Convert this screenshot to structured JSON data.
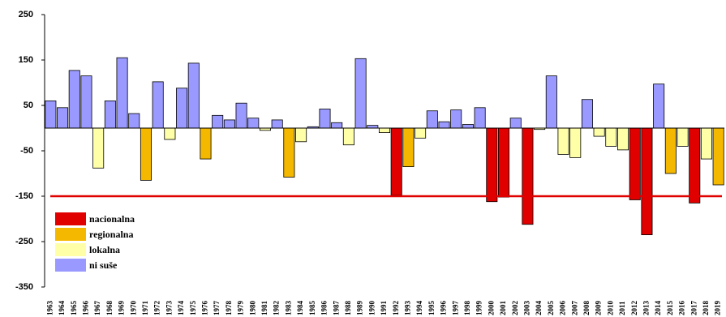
{
  "chart_data": {
    "type": "bar",
    "categories": [
      "1963",
      "1964",
      "1965",
      "1966",
      "1967",
      "1968",
      "1969",
      "1970",
      "1971",
      "1972",
      "1973",
      "1974",
      "1975",
      "1976",
      "1977",
      "1978",
      "1979",
      "1980",
      "1981",
      "1982",
      "1983",
      "1984",
      "1985",
      "1986",
      "1987",
      "1988",
      "1989",
      "1990",
      "1991",
      "1992",
      "1993",
      "1994",
      "1995",
      "1996",
      "1997",
      "1998",
      "1999",
      "2000",
      "2001",
      "2002",
      "2003",
      "2004",
      "2005",
      "2006",
      "2007",
      "2008",
      "2009",
      "2010",
      "2011",
      "2012",
      "2013",
      "2014",
      "2015",
      "2016",
      "2017",
      "2018",
      "2019"
    ],
    "values": [
      60,
      45,
      127,
      115,
      -88,
      60,
      155,
      32,
      -115,
      102,
      -25,
      88,
      143,
      -68,
      28,
      18,
      55,
      22,
      -5,
      18,
      -108,
      -30,
      3,
      42,
      12,
      -37,
      153,
      6,
      -10,
      -148,
      -85,
      -22,
      38,
      14,
      40,
      8,
      45,
      -162,
      -152,
      22,
      -212,
      -3,
      115,
      -58,
      -65,
      63,
      -18,
      -40,
      -48,
      -158,
      -235,
      97,
      -100,
      -40,
      -165,
      -68,
      -125
    ],
    "colors": [
      "#9999ff",
      "#9999ff",
      "#9999ff",
      "#9999ff",
      "#ffffa8",
      "#9999ff",
      "#9999ff",
      "#9999ff",
      "#f5b800",
      "#9999ff",
      "#ffffa8",
      "#9999ff",
      "#9999ff",
      "#f5b800",
      "#9999ff",
      "#9999ff",
      "#9999ff",
      "#9999ff",
      "#ffffa8",
      "#9999ff",
      "#f5b800",
      "#ffffa8",
      "#9999ff",
      "#9999ff",
      "#9999ff",
      "#ffffa8",
      "#9999ff",
      "#9999ff",
      "#ffffa8",
      "#e00000",
      "#f5b800",
      "#ffffa8",
      "#9999ff",
      "#9999ff",
      "#9999ff",
      "#9999ff",
      "#9999ff",
      "#e00000",
      "#e00000",
      "#9999ff",
      "#e00000",
      "#ffffa8",
      "#9999ff",
      "#ffffa8",
      "#ffffa8",
      "#9999ff",
      "#ffffa8",
      "#ffffa8",
      "#ffffa8",
      "#e00000",
      "#e00000",
      "#9999ff",
      "#f5b800",
      "#ffffa8",
      "#e00000",
      "#ffffa8",
      "#f5b800"
    ],
    "legend": [
      {
        "name": "nacionalna",
        "color": "#e00000"
      },
      {
        "name": "regionalna",
        "color": "#f5b800"
      },
      {
        "name": "lokalna",
        "color": "#ffffa8"
      },
      {
        "name": "ni suše",
        "color": "#9999ff"
      }
    ],
    "threshold": {
      "value": -150,
      "color": "#e00000"
    },
    "ylim": [
      -350,
      250
    ],
    "yticks": [
      250,
      150,
      50,
      -50,
      -150,
      -250,
      -350
    ]
  }
}
